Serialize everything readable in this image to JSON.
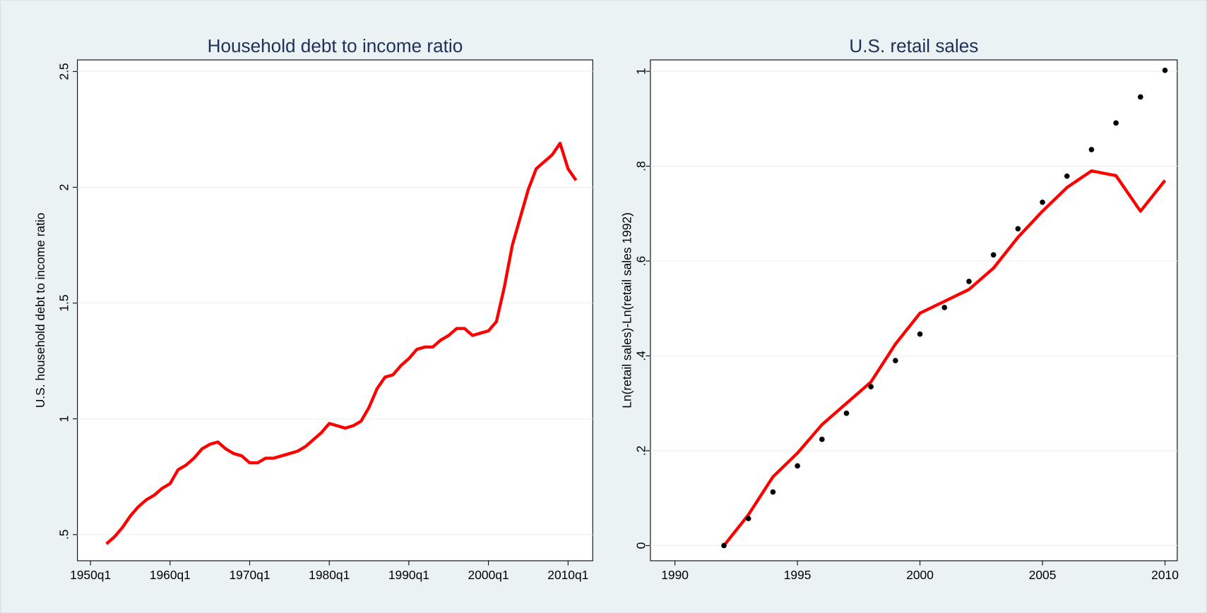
{
  "chart_data": [
    {
      "type": "line",
      "title": "Household debt to income ratio",
      "y_label": "U.S. household debt to income ratio",
      "x": [
        1952,
        1953,
        1954,
        1955,
        1956,
        1957,
        1958,
        1959,
        1960,
        1961,
        1962,
        1963,
        1964,
        1965,
        1966,
        1967,
        1968,
        1969,
        1970,
        1971,
        1972,
        1973,
        1974,
        1975,
        1976,
        1977,
        1978,
        1979,
        1980,
        1981,
        1982,
        1983,
        1984,
        1985,
        1986,
        1987,
        1988,
        1989,
        1990,
        1991,
        1992,
        1993,
        1994,
        1995,
        1996,
        1997,
        1998,
        1999,
        2000,
        2001,
        2002,
        2003,
        2004,
        2005,
        2006,
        2007,
        2008,
        2009,
        2010,
        2011
      ],
      "series": [
        {
          "style": "line",
          "color": "#ff0000",
          "values": [
            0.46,
            0.49,
            0.53,
            0.58,
            0.62,
            0.65,
            0.67,
            0.7,
            0.72,
            0.78,
            0.8,
            0.83,
            0.87,
            0.89,
            0.9,
            0.87,
            0.85,
            0.84,
            0.81,
            0.81,
            0.83,
            0.83,
            0.84,
            0.85,
            0.86,
            0.88,
            0.91,
            0.94,
            0.98,
            0.97,
            0.96,
            0.97,
            0.99,
            1.05,
            1.13,
            1.18,
            1.19,
            1.23,
            1.26,
            1.3,
            1.31,
            1.31,
            1.34,
            1.36,
            1.39,
            1.39,
            1.36,
            1.37,
            1.38,
            1.42,
            1.57,
            1.75,
            1.87,
            1.99,
            2.08,
            2.11,
            2.14,
            2.19,
            2.08,
            2.03
          ]
        }
      ],
      "xlim": [
        1948.36,
        2013.1
      ],
      "xticks": [
        {
          "value": 1950,
          "label": "1950q1"
        },
        {
          "value": 1960,
          "label": "1960q1"
        },
        {
          "value": 1970,
          "label": "1970q1"
        },
        {
          "value": 1980,
          "label": "1980q1"
        },
        {
          "value": 1990,
          "label": "1990q1"
        },
        {
          "value": 2000,
          "label": "2000q1"
        },
        {
          "value": 2010,
          "label": "2010q1"
        }
      ],
      "ylim": [
        0.387,
        2.55
      ],
      "yticks": [
        {
          "value": 0.5,
          "label": ".5"
        },
        1,
        1.5,
        2,
        2.5
      ],
      "grid": true
    },
    {
      "type": "line",
      "title": "U.S. retail sales",
      "y_label": "Ln(retail sales)-Ln(retail sales 1992)",
      "x": [
        1992,
        1993,
        1994,
        1995,
        1996,
        1997,
        1998,
        1999,
        2000,
        2001,
        2002,
        2003,
        2004,
        2005,
        2006,
        2007,
        2008,
        2009,
        2010
      ],
      "series": [
        {
          "style": "line",
          "color": "#ff0000",
          "values": [
            0,
            0.065,
            0.145,
            0.195,
            0.255,
            0.3,
            0.345,
            0.425,
            0.49,
            0.515,
            0.54,
            0.585,
            0.65,
            0.705,
            0.755,
            0.79,
            0.78,
            0.705,
            0.77
          ]
        },
        {
          "style": "points",
          "color": "#000000",
          "values": [
            0,
            0.057,
            0.113,
            0.168,
            0.224,
            0.279,
            0.335,
            0.39,
            0.446,
            0.502,
            0.557,
            0.613,
            0.668,
            0.724,
            0.779,
            0.835,
            0.891,
            0.946,
            1.002
          ]
        }
      ],
      "xlim": [
        1989,
        2010.5
      ],
      "xticks": [
        1990,
        1995,
        2000,
        2005,
        2010
      ],
      "ylim": [
        -0.032,
        1.024
      ],
      "yticks": [
        0,
        {
          "value": 0.2,
          "label": ".2"
        },
        {
          "value": 0.4,
          "label": ".4"
        },
        {
          "value": 0.6,
          "label": ".6"
        },
        {
          "value": 0.8,
          "label": ".8"
        },
        1
      ],
      "grid": true
    }
  ]
}
